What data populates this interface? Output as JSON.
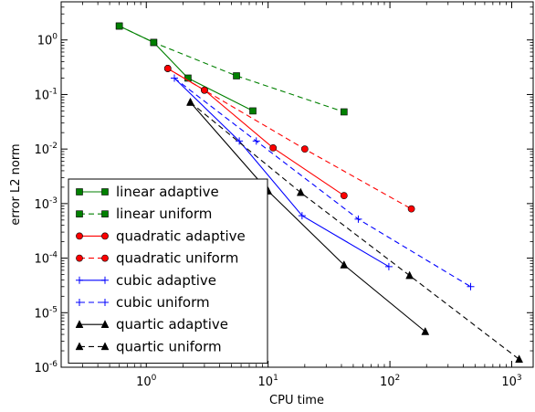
{
  "chart_data": {
    "type": "line",
    "xlabel": "CPU time",
    "ylabel": "error L2 norm",
    "xscale": "log",
    "yscale": "log",
    "xlim": [
      0.2,
      1500
    ],
    "ylim": [
      1e-06,
      5
    ],
    "grid": false,
    "legend_position": "bottom-left",
    "xticks": [
      {
        "value": 1,
        "base": "10",
        "exp": "0"
      },
      {
        "value": 10,
        "base": "10",
        "exp": "1"
      },
      {
        "value": 100,
        "base": "10",
        "exp": "2"
      },
      {
        "value": 1000,
        "base": "10",
        "exp": "3"
      }
    ],
    "yticks": [
      {
        "value": 1,
        "base": "10",
        "exp": "0"
      },
      {
        "value": 0.1,
        "base": "10",
        "exp": "-1"
      },
      {
        "value": 0.01,
        "base": "10",
        "exp": "-2"
      },
      {
        "value": 0.001,
        "base": "10",
        "exp": "-3"
      },
      {
        "value": 0.0001,
        "base": "10",
        "exp": "-4"
      },
      {
        "value": 1e-05,
        "base": "10",
        "exp": "-5"
      },
      {
        "value": 1e-06,
        "base": "10",
        "exp": "-6"
      }
    ],
    "series": [
      {
        "name": "linear adaptive",
        "color": "#008000",
        "marker": "square",
        "dashed": false,
        "x": [
          0.6,
          1.15,
          2.2,
          7.5
        ],
        "y": [
          1.8,
          0.9,
          0.2,
          0.05
        ]
      },
      {
        "name": "linear uniform",
        "color": "#008000",
        "marker": "square",
        "dashed": true,
        "x": [
          0.6,
          1.15,
          5.5,
          42
        ],
        "y": [
          1.8,
          0.9,
          0.22,
          0.048
        ]
      },
      {
        "name": "quadratic adaptive",
        "color": "#ff0000",
        "marker": "circle",
        "dashed": false,
        "x": [
          1.5,
          3.0,
          11,
          42
        ],
        "y": [
          0.3,
          0.12,
          0.0105,
          0.0014
        ]
      },
      {
        "name": "quadratic uniform",
        "color": "#ff0000",
        "marker": "circle",
        "dashed": true,
        "x": [
          1.5,
          3.0,
          20,
          150
        ],
        "y": [
          0.3,
          0.12,
          0.01,
          0.0008
        ]
      },
      {
        "name": "cubic adaptive",
        "color": "#0000ff",
        "marker": "plus",
        "dashed": false,
        "x": [
          1.7,
          5.8,
          19,
          98
        ],
        "y": [
          0.2,
          0.014,
          0.0006,
          7e-05
        ]
      },
      {
        "name": "cubic uniform",
        "color": "#0000ff",
        "marker": "plus",
        "dashed": true,
        "x": [
          1.7,
          8.0,
          55,
          460
        ],
        "y": [
          0.2,
          0.014,
          0.00052,
          3e-05
        ]
      },
      {
        "name": "quartic adaptive",
        "color": "#000000",
        "marker": "triangle",
        "dashed": false,
        "x": [
          2.3,
          10,
          42,
          195
        ],
        "y": [
          0.072,
          0.0017,
          7.5e-05,
          4.5e-06
        ]
      },
      {
        "name": "quartic uniform",
        "color": "#000000",
        "marker": "triangle",
        "dashed": true,
        "x": [
          2.3,
          18.5,
          145,
          1150
        ],
        "y": [
          0.072,
          0.0016,
          4.8e-05,
          1.4e-06
        ]
      }
    ]
  }
}
